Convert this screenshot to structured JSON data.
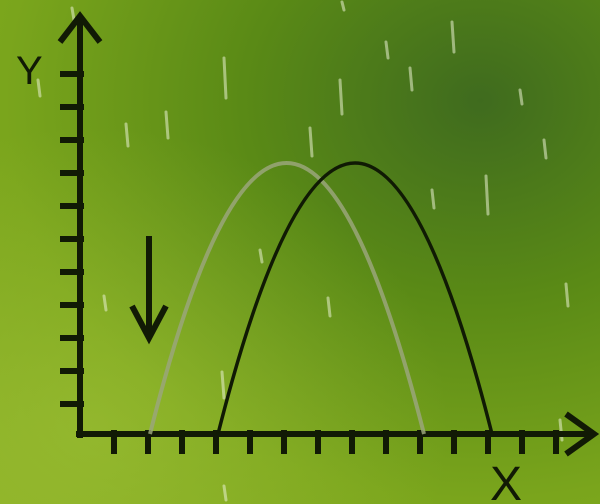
{
  "axes": {
    "x_label": "X",
    "y_label": "Y"
  },
  "colors": {
    "axis": "#111a05",
    "curve_dark": "#101a04",
    "curve_faded": "#9aa67a",
    "rain": "#e8f0d0"
  },
  "icons": {
    "direction_arrow": "down-arrow-icon"
  }
}
